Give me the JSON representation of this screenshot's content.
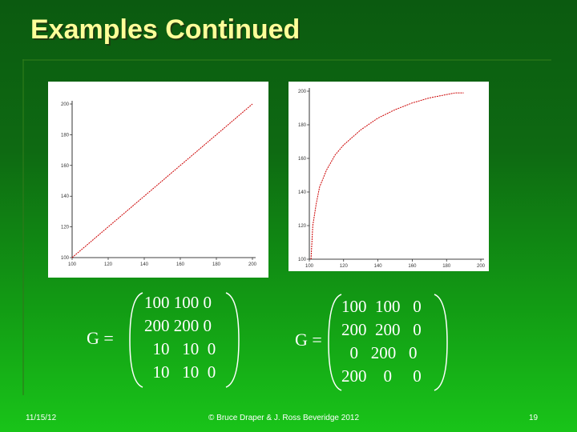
{
  "slide": {
    "title": "Examples Continued",
    "footer_date": "11/15/12",
    "footer_copyright": "© Bruce Draper & J. Ross Beveridge 2012",
    "page_number": "19"
  },
  "colors": {
    "title": "#ffff99",
    "curve": "#cc0000",
    "text": "#ffffff"
  },
  "chart_data": [
    {
      "type": "line",
      "title": "",
      "xlabel": "",
      "ylabel": "",
      "xlim": [
        100,
        200
      ],
      "ylim": [
        100,
        200
      ],
      "x_ticks": [
        "100",
        "120",
        "140",
        "160",
        "180",
        "200"
      ],
      "y_ticks": [
        "100",
        "120",
        "140",
        "160",
        "180",
        "200"
      ],
      "x": [
        100,
        120,
        140,
        160,
        180,
        200
      ],
      "y": [
        100,
        120,
        140,
        160,
        180,
        200
      ]
    },
    {
      "type": "line",
      "title": "",
      "xlabel": "",
      "ylabel": "",
      "xlim": [
        100,
        200
      ],
      "ylim": [
        100,
        200
      ],
      "x_ticks": [
        "100",
        "120",
        "140",
        "160",
        "180",
        "200"
      ],
      "y_ticks": [
        "100",
        "120",
        "140",
        "160",
        "180",
        "200"
      ],
      "x": [
        101,
        102,
        104,
        106,
        110,
        115,
        120,
        130,
        140,
        150,
        160,
        170,
        180,
        185,
        190
      ],
      "y": [
        100,
        120,
        133,
        143,
        153,
        162,
        168,
        177,
        184,
        189,
        193,
        196,
        198,
        199,
        199
      ]
    }
  ],
  "matrix1": {
    "label": "G =",
    "rows": [
      "100 100 0",
      "200 200 0",
      "  10   10  0",
      "  10   10  0"
    ]
  },
  "matrix2": {
    "label": "G =",
    "rows": [
      "100  100   0",
      "200  200   0",
      "  0   200   0",
      "200    0     0"
    ]
  }
}
